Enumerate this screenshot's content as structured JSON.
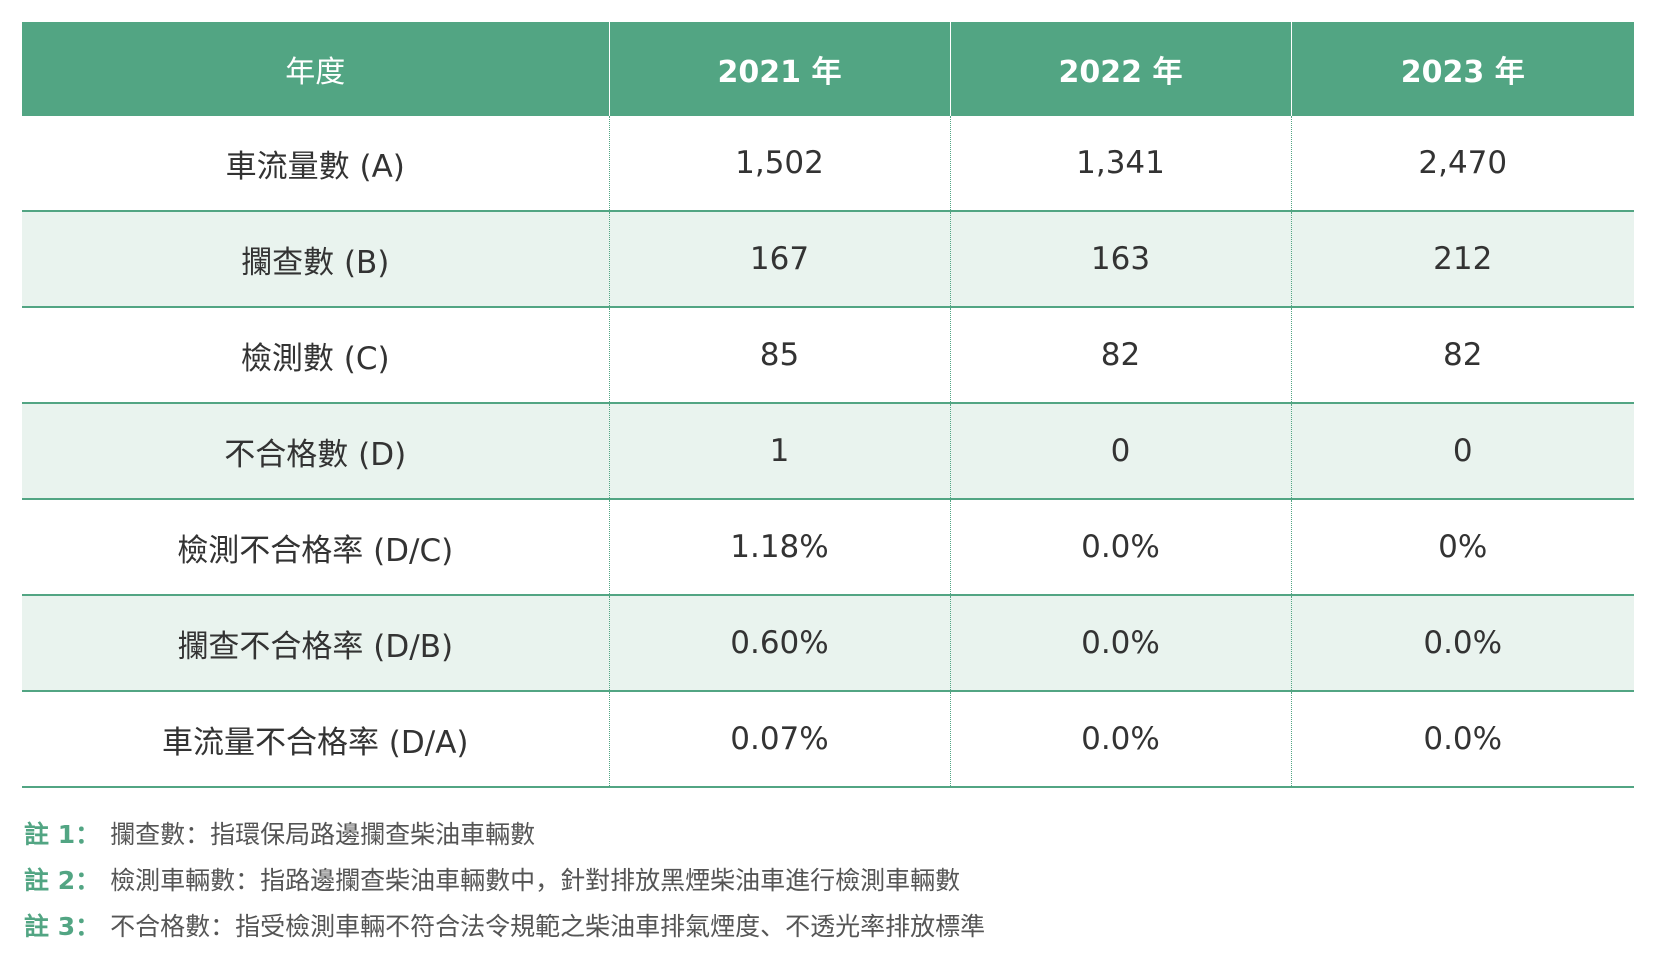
{
  "table": {
    "header": [
      "年度",
      "2021 年",
      "2022 年",
      "2023 年"
    ],
    "rows": [
      [
        "車流量數 (A)",
        "1,502",
        "1,341",
        "2,470"
      ],
      [
        "攔查數 (B)",
        "167",
        "163",
        "212"
      ],
      [
        "檢測數 (C)",
        "85",
        "82",
        "82"
      ],
      [
        "不合格數 (D)",
        "1",
        "0",
        "0"
      ],
      [
        "檢測不合格率 (D/C)",
        "1.18%",
        "0.0%",
        "0%"
      ],
      [
        "攔查不合格率 (D/B)",
        "0.60%",
        "0.0%",
        "0.0%"
      ],
      [
        "車流量不合格率 (D/A)",
        "0.07%",
        "0.0%",
        "0.0%"
      ]
    ]
  },
  "notes": [
    {
      "label": "註 1：",
      "text": "攔查數：指環保局路邊攔查柴油車輛數"
    },
    {
      "label": "註 2：",
      "text": "檢測車輛數：指路邊攔查柴油車輛數中，針對排放黑煙柴油車進行檢測車輛數"
    },
    {
      "label": "註 3：",
      "text": "不合格數：指受檢測車輛不符合法令規範之柴油車排氣煙度、不透光率排放標準"
    }
  ],
  "colors": {
    "accent": "#52a583",
    "stripe": "#e9f3ee",
    "text": "#333333"
  }
}
